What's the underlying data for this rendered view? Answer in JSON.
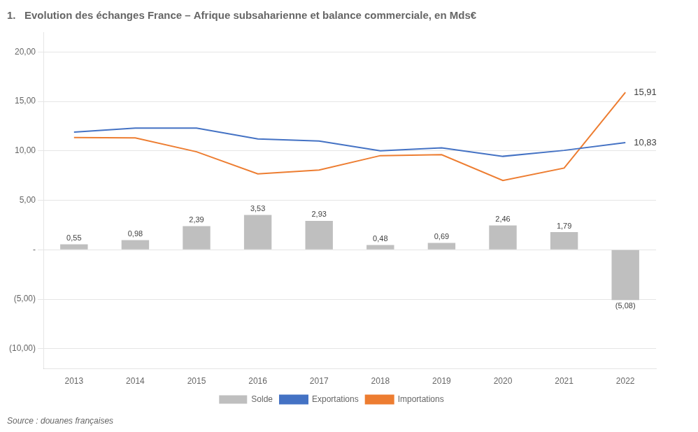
{
  "chart_data": {
    "type": "bar",
    "title": "1.   Evolution des échanges France – Afrique subsaharienne et balance commerciale, en Mds€",
    "subtitle": "Source : douanes françaises",
    "categories": [
      2013,
      2014,
      2015,
      2016,
      2017,
      2018,
      2019,
      2020,
      2021,
      2022
    ],
    "series": [
      {
        "name": "Solde",
        "type": "bar",
        "color": "#BFBFBF",
        "values": [
          0.55,
          0.98,
          2.39,
          3.53,
          2.93,
          0.48,
          0.69,
          2.46,
          1.79,
          -5.08
        ],
        "value_labels": [
          "0,55",
          "0,98",
          "2,39",
          "3,53",
          "2,93",
          "0,48",
          "0,69",
          "2,46",
          "1,79",
          "(5,08)"
        ],
        "data_labels": true
      },
      {
        "name": "Exportations",
        "type": "line",
        "color": "#4472C4",
        "values": [
          11.9,
          12.3,
          12.3,
          11.2,
          11.0,
          10.0,
          10.3,
          9.45,
          10.05,
          10.83
        ]
      },
      {
        "name": "Importations",
        "type": "line",
        "color": "#ED7D31",
        "values": [
          11.35,
          11.32,
          9.91,
          7.67,
          8.07,
          9.52,
          9.61,
          7.0,
          8.26,
          15.91
        ]
      }
    ],
    "annotations": [
      {
        "text": "10,83",
        "x": 2022,
        "y": 10.83
      },
      {
        "text": "15,91",
        "x": 2022,
        "y": 15.91
      }
    ],
    "ylim": [
      -12,
      22
    ],
    "yticks": [
      {
        "value": 20.0,
        "label": "20,00"
      },
      {
        "value": 15.0,
        "label": "15,00"
      },
      {
        "value": 10.0,
        "label": "10,00"
      },
      {
        "value": 5.0,
        "label": "5,00"
      },
      {
        "value": 0.0,
        "label": "-"
      },
      {
        "value": -5.0,
        "label": "(5,00)"
      },
      {
        "value": -10.0,
        "label": "(10,00)"
      }
    ],
    "grid": true,
    "legend": "bottom"
  }
}
